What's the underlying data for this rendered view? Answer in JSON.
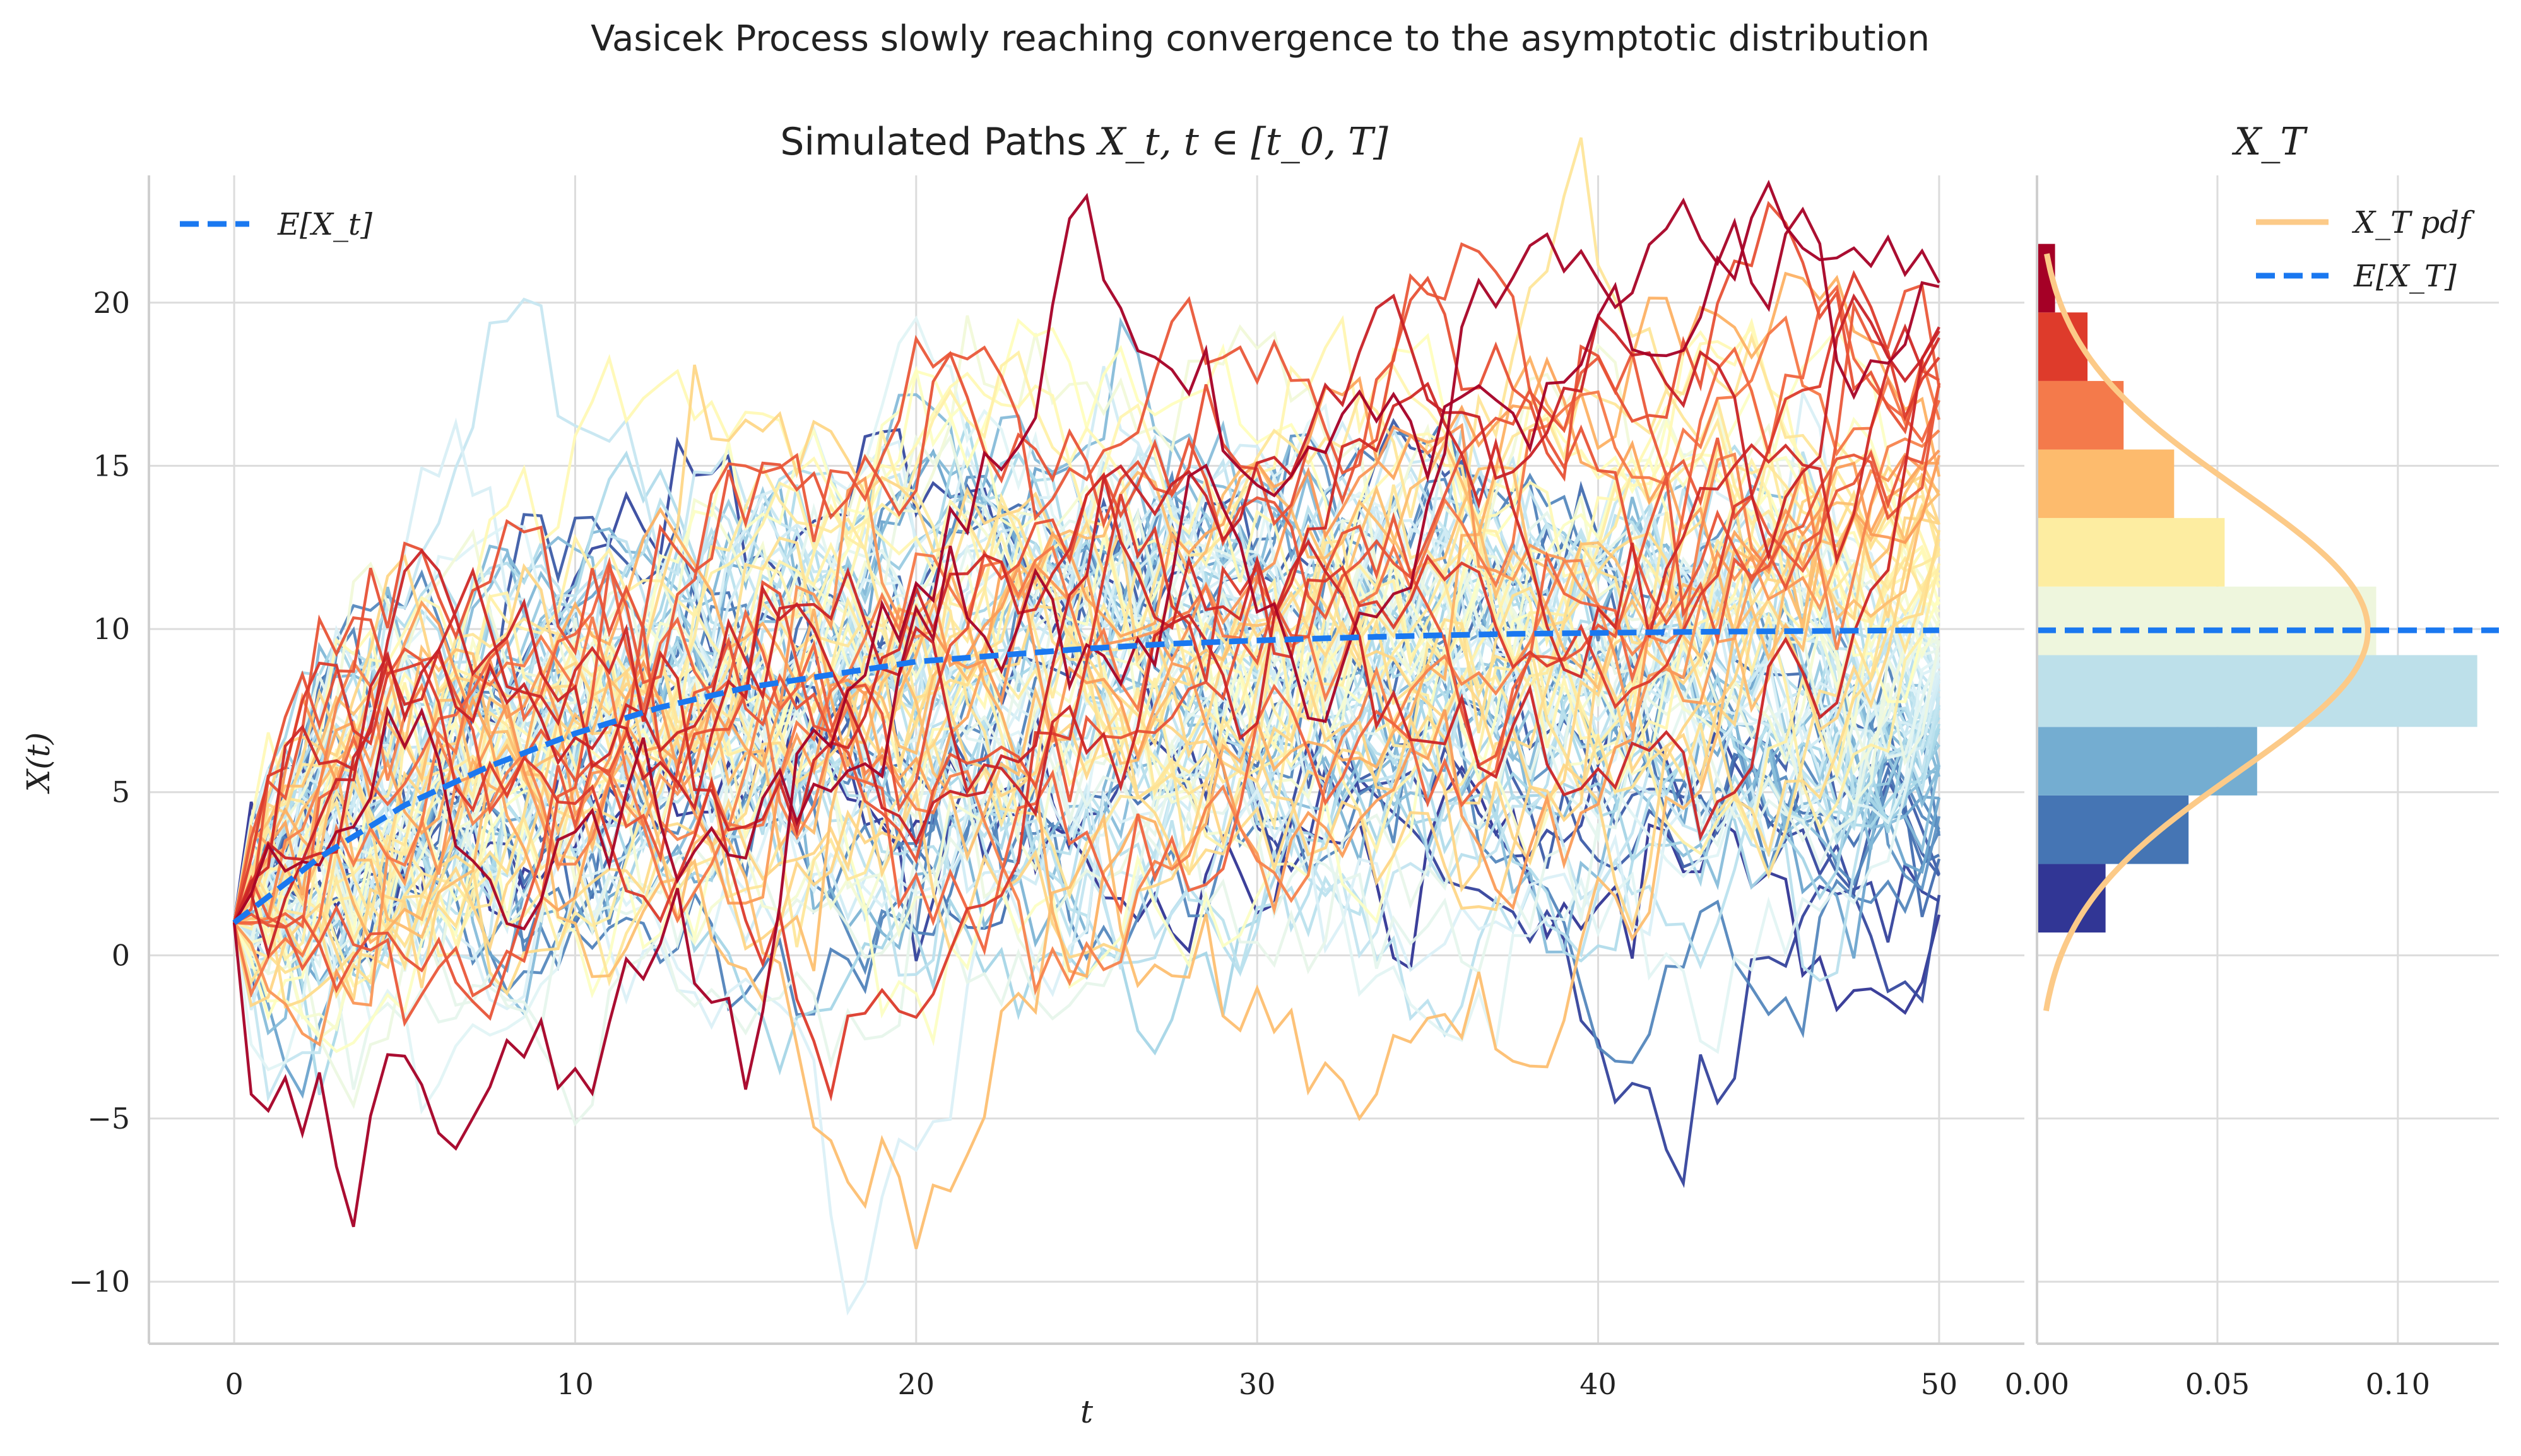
{
  "figure": {
    "suptitle": "Vasicek Process slowly reaching convergence to the asymptotic distribution"
  },
  "chart_data": [
    {
      "type": "line",
      "title": "Simulated Paths X_t, t ∈ [t_0, T]",
      "title_plain": "Simulated Paths ",
      "title_math": "X_t, t ∈ [t_0, T]",
      "xlabel": "t",
      "ylabel": "X(t)",
      "xlim": [
        -2.5,
        52.5
      ],
      "ylim": [
        -11.9,
        23.9
      ],
      "xticks": [
        0,
        10,
        20,
        30,
        40,
        50
      ],
      "xtick_labels": [
        "0",
        "10",
        "20",
        "30",
        "40",
        "50"
      ],
      "yticks": [
        -10,
        -5,
        0,
        5,
        10,
        15,
        20
      ],
      "ytick_labels": [
        "−10",
        "−5",
        "0",
        "5",
        "10",
        "15",
        "20"
      ],
      "grid": true,
      "legend_placement": "top-left",
      "legend": [
        "E[X_t]"
      ],
      "paths": {
        "count": 100,
        "x_start": 0,
        "x_end": 50,
        "step": 0.5,
        "x0": 1,
        "colormap": "RdYlBu_r",
        "colormap_stops": [
          "#313695",
          "#4575b4",
          "#74add1",
          "#abd9e9",
          "#e0f3f8",
          "#ffffbf",
          "#fee090",
          "#fdae61",
          "#f46d43",
          "#d73027",
          "#a50026"
        ]
      },
      "mean_curve": {
        "name": "E[X_t]",
        "color": "#1a78f0",
        "x": [
          0,
          2.5,
          5,
          7.5,
          10,
          12.5,
          15,
          17.5,
          20,
          22.5,
          25,
          27.5,
          30,
          32.5,
          35,
          37.5,
          40,
          42.5,
          45,
          47.5,
          50
        ],
        "y": [
          1.0,
          3.0,
          4.6,
          5.8,
          6.8,
          7.6,
          8.2,
          8.6,
          9.0,
          9.2,
          9.4,
          9.55,
          9.65,
          9.73,
          9.8,
          9.85,
          9.88,
          9.91,
          9.93,
          9.95,
          9.96
        ]
      }
    },
    {
      "type": "bar",
      "orientation": "horizontal",
      "title": "X_T",
      "xlim": [
        0,
        0.128
      ],
      "ylim": [
        -11.9,
        23.9
      ],
      "xticks": [
        0.0,
        0.05,
        0.1
      ],
      "xtick_labels": [
        "0.00",
        "0.05",
        "0.10"
      ],
      "grid": true,
      "legend_placement": "top-right",
      "legend": [
        "X_T pdf",
        "E[X_T]"
      ],
      "bins": [
        {
          "from": 0.7,
          "to": 2.8,
          "density": 0.019,
          "color": "#313695"
        },
        {
          "from": 2.8,
          "to": 4.9,
          "density": 0.042,
          "color": "#4575b4"
        },
        {
          "from": 4.9,
          "to": 7.0,
          "density": 0.061,
          "color": "#74add1"
        },
        {
          "from": 7.0,
          "to": 9.2,
          "density": 0.122,
          "color": "#bde0ea"
        },
        {
          "from": 9.2,
          "to": 11.3,
          "density": 0.094,
          "color": "#eef6dd"
        },
        {
          "from": 11.3,
          "to": 13.4,
          "density": 0.052,
          "color": "#fdeda1"
        },
        {
          "from": 13.4,
          "to": 15.5,
          "density": 0.038,
          "color": "#fdbb6d"
        },
        {
          "from": 15.5,
          "to": 17.6,
          "density": 0.024,
          "color": "#f47a4b"
        },
        {
          "from": 17.6,
          "to": 19.7,
          "density": 0.014,
          "color": "#de3b2b"
        },
        {
          "from": 19.7,
          "to": 21.8,
          "density": 0.005,
          "color": "#a50026"
        }
      ],
      "pdf": {
        "name": "X_T pdf",
        "color": "#fcca88",
        "mean": 9.96,
        "sd": 4.35,
        "y_range": [
          -1.7,
          21.5
        ]
      },
      "mean_line": {
        "name": "E[X_T]",
        "value": 9.96,
        "color": "#1a78f0"
      }
    }
  ]
}
